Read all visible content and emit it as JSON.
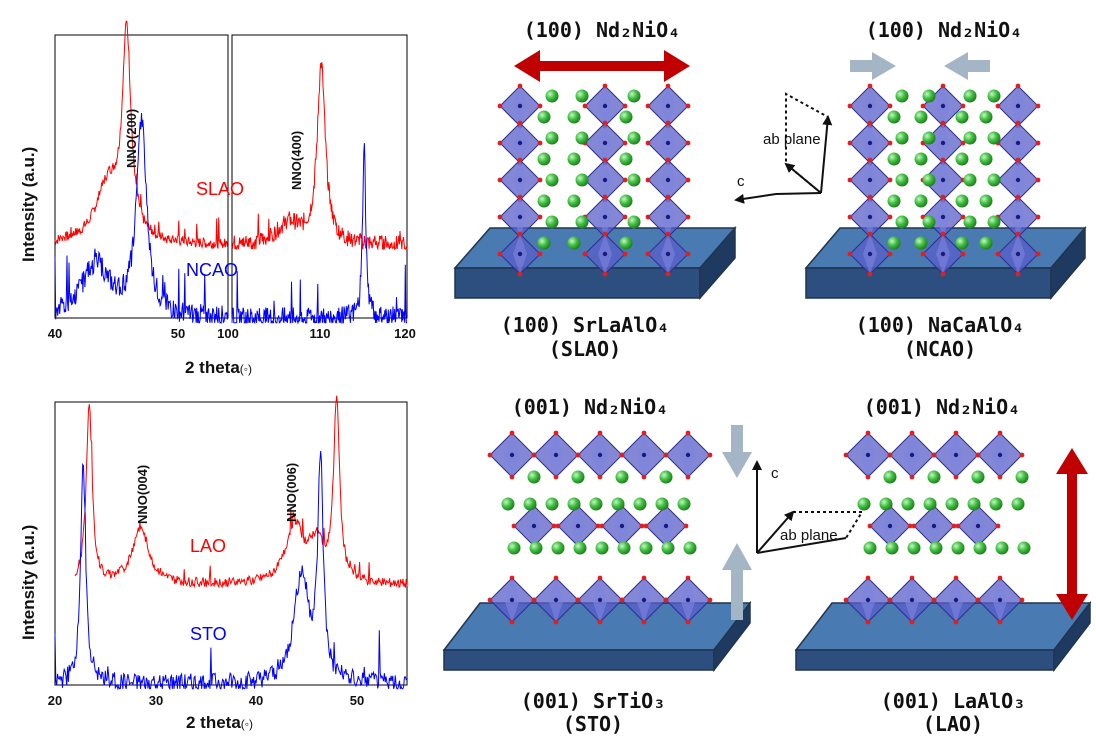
{
  "chart_data": [
    {
      "type": "line",
      "xlabel": "2 theta",
      "xunit": "(◦)",
      "ylabel": "Intensity (a.u.)",
      "broken_x_axis": true,
      "xticks": [
        "40",
        "50",
        "100",
        "110",
        "120"
      ],
      "segments": [
        {
          "xlim": [
            40,
            54
          ]
        },
        {
          "xlim": [
            100,
            120
          ]
        }
      ],
      "annotations": [
        {
          "text": "NNO(200)",
          "x": 44.5
        },
        {
          "text": "NNO(400)",
          "x": 106.5
        }
      ],
      "series": [
        {
          "name": "SLAO",
          "color": "#ff0000",
          "peaks": [
            {
              "x": 45.8,
              "height": 0.95
            },
            {
              "x": 44.3,
              "height": 0.28
            },
            {
              "x": 110.2,
              "height": 0.85
            },
            {
              "x": 106.5,
              "height": 0.1
            }
          ]
        },
        {
          "name": "NCAO",
          "color": "#0000ff",
          "peaks": [
            {
              "x": 47.0,
              "height": 0.8
            },
            {
              "x": 43.3,
              "height": 0.22
            },
            {
              "x": 115.1,
              "height": 0.75
            }
          ]
        }
      ]
    },
    {
      "type": "line",
      "xlabel": "2 theta",
      "xunit": "(◦)",
      "ylabel": "Intensity (a.u.)",
      "xlim": [
        20,
        55
      ],
      "xticks": [
        "20",
        "30",
        "40",
        "50"
      ],
      "annotations": [
        {
          "text": "NNO(004)",
          "x": 28.5
        },
        {
          "text": "NNO(006)",
          "x": 43.8
        }
      ],
      "series": [
        {
          "name": "LAO",
          "color": "#ff0000",
          "peaks": [
            {
              "x": 23.4,
              "height": 0.95
            },
            {
              "x": 28.5,
              "height": 0.3
            },
            {
              "x": 43.8,
              "height": 0.3
            },
            {
              "x": 46.0,
              "height": 0.2
            },
            {
              "x": 48.0,
              "height": 0.95
            }
          ]
        },
        {
          "name": "STO",
          "color": "#0000ff",
          "peaks": [
            {
              "x": 22.8,
              "height": 0.9
            },
            {
              "x": 44.5,
              "height": 0.45
            },
            {
              "x": 46.4,
              "height": 0.9
            }
          ]
        }
      ]
    }
  ],
  "panels": [
    {
      "film": "(100) Nd₂NiO₄",
      "substrate": "(100) SrLaAlO₄",
      "abbrev": "(SLAO)",
      "strain": "tensile"
    },
    {
      "film": "(100) Nd₂NiO₄",
      "substrate": "(100) NaCaAlO₄",
      "abbrev": "(NCAO)",
      "strain": "compressive"
    },
    {
      "film": "(001) Nd₂NiO₄",
      "substrate": "(001) SrTiO₃",
      "abbrev": "(STO)",
      "strain": "compressive"
    },
    {
      "film": "(001) Nd₂NiO₄",
      "substrate": "(001) LaAlO₃",
      "abbrev": "(LAO)",
      "strain": "tensile"
    }
  ],
  "axes_labels": {
    "ab": "ab plane",
    "c": "c"
  },
  "colors": {
    "red": "#e00000",
    "blue": "#0000ff",
    "dark_red": "#c00000",
    "grey_arrow": "#a4b6c6",
    "substrate": "#4a7ab2",
    "octahedron": "#5a5fc8",
    "sphere": "#3fbf3f"
  }
}
